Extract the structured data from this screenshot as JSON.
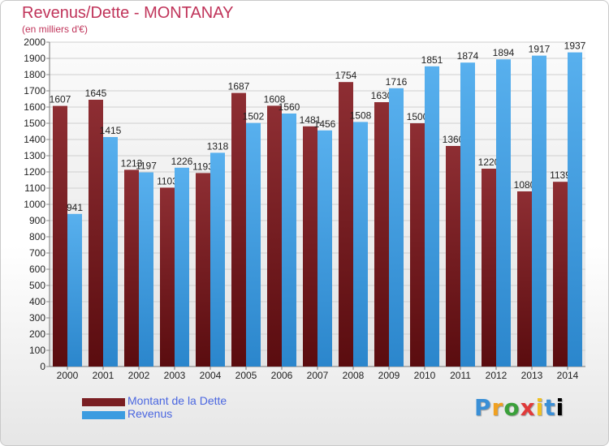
{
  "title": "Revenus/Dette - MONTANAY",
  "subtitle": "(en milliers d'€)",
  "logo_text": "Proxiti",
  "colors": {
    "dette": "#7a1e22",
    "revenus": "#3c9ce0",
    "title": "#c0345a",
    "legend_text": "#4a66e0"
  },
  "chart_data": {
    "type": "bar",
    "title": "Revenus/Dette - MONTANAY",
    "subtitle": "(en milliers d'€)",
    "categories": [
      "2000",
      "2001",
      "2002",
      "2003",
      "2004",
      "2005",
      "2006",
      "2007",
      "2008",
      "2009",
      "2010",
      "2011",
      "2012",
      "2013",
      "2014"
    ],
    "series": [
      {
        "name": "Montant de la Dette",
        "values": [
          1607,
          1645,
          1213,
          1103,
          1193,
          1687,
          1608,
          1481,
          1754,
          1630,
          1500,
          1360,
          1220,
          1080,
          1139
        ]
      },
      {
        "name": "Revenus",
        "values": [
          941,
          1415,
          1197,
          1226,
          1318,
          1502,
          1560,
          1456,
          1508,
          1716,
          1851,
          1874,
          1894,
          1917,
          1937
        ]
      }
    ],
    "ylim": [
      0,
      2000
    ],
    "yticks": [
      0,
      100,
      200,
      300,
      400,
      500,
      600,
      700,
      800,
      900,
      1000,
      1100,
      1200,
      1300,
      1400,
      1500,
      1600,
      1700,
      1800,
      1900,
      2000
    ],
    "grid": true,
    "legend_position": "bottom-left"
  }
}
